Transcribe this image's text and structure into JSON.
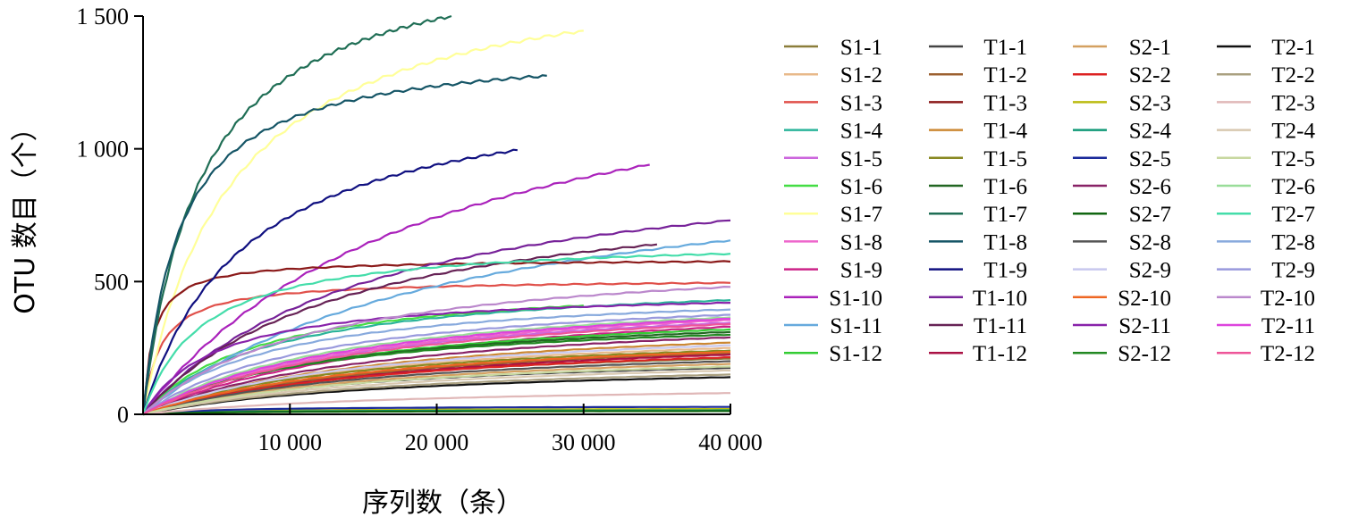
{
  "chart_data": {
    "type": "line",
    "xlabel": "序列数（条）",
    "ylabel": "OTU 数目（个）",
    "xlim": [
      0,
      40000
    ],
    "ylim": [
      0,
      1500
    ],
    "x_ticks": [
      10000,
      20000,
      30000,
      40000
    ],
    "x_tick_labels": [
      "10 000",
      "20 000",
      "30 000",
      "40 000"
    ],
    "y_ticks": [
      0,
      500,
      1000,
      1500
    ],
    "y_tick_labels": [
      "0",
      "500",
      "1 000",
      "1 500"
    ],
    "grid": false,
    "legend_position": "right",
    "series": [
      {
        "name": "S1-1",
        "color": "#8b7d3a",
        "end_x": 40000,
        "end_y": 210,
        "k": 14000
      },
      {
        "name": "S1-2",
        "color": "#e8b98a",
        "end_x": 40000,
        "end_y": 250,
        "k": 16000
      },
      {
        "name": "S1-3",
        "color": "#e0504a",
        "end_x": 40000,
        "end_y": 495,
        "k": 1200
      },
      {
        "name": "S1-4",
        "color": "#2ab49a",
        "end_x": 40000,
        "end_y": 430,
        "k": 9000
      },
      {
        "name": "S1-5",
        "color": "#cc66dd",
        "end_x": 40000,
        "end_y": 345,
        "k": 15000
      },
      {
        "name": "S1-6",
        "color": "#44dd44",
        "end_x": 30000,
        "end_y": 410,
        "k": 8000
      },
      {
        "name": "S1-7",
        "color": "#ffff99",
        "end_x": 30000,
        "end_y": 1445,
        "k": 6000
      },
      {
        "name": "S1-8",
        "color": "#ee66cc",
        "end_x": 40000,
        "end_y": 355,
        "k": 16000
      },
      {
        "name": "S1-9",
        "color": "#cc2288",
        "end_x": 40000,
        "end_y": 330,
        "k": 18000
      },
      {
        "name": "S1-10",
        "color": "#aa22bb",
        "end_x": 34500,
        "end_y": 940,
        "k": 20000
      },
      {
        "name": "S1-11",
        "color": "#66aadd",
        "end_x": 40000,
        "end_y": 655,
        "k": 22000
      },
      {
        "name": "S1-12",
        "color": "#33cc33",
        "end_x": 40000,
        "end_y": 320,
        "k": 14000
      },
      {
        "name": "T1-1",
        "color": "#444444",
        "end_x": 40000,
        "end_y": 175,
        "k": 16000
      },
      {
        "name": "T1-2",
        "color": "#9c6030",
        "end_x": 40000,
        "end_y": 230,
        "k": 18000
      },
      {
        "name": "T1-3",
        "color": "#8b1a1a",
        "end_x": 40000,
        "end_y": 575,
        "k": 700
      },
      {
        "name": "T1-4",
        "color": "#cc8833",
        "end_x": 40000,
        "end_y": 270,
        "k": 17000
      },
      {
        "name": "T1-5",
        "color": "#888822",
        "end_x": 40000,
        "end_y": 240,
        "k": 15000
      },
      {
        "name": "T1-6",
        "color": "#226622",
        "end_x": 40000,
        "end_y": 310,
        "k": 13000
      },
      {
        "name": "T1-7",
        "color": "#1f6e55",
        "end_x": 21000,
        "end_y": 1500,
        "k": 4000
      },
      {
        "name": "T1-8",
        "color": "#155566",
        "end_x": 27500,
        "end_y": 1275,
        "k": 2500
      },
      {
        "name": "T1-9",
        "color": "#101080",
        "end_x": 25500,
        "end_y": 995,
        "k": 7000
      },
      {
        "name": "T1-10",
        "color": "#772299",
        "end_x": 40000,
        "end_y": 730,
        "k": 16000
      },
      {
        "name": "T1-11",
        "color": "#662255",
        "end_x": 35000,
        "end_y": 640,
        "k": 14000
      },
      {
        "name": "T1-12",
        "color": "#aa1144",
        "end_x": 40000,
        "end_y": 225,
        "k": 20000
      },
      {
        "name": "S2-1",
        "color": "#d4a060",
        "end_x": 40000,
        "end_y": 190,
        "k": 18000
      },
      {
        "name": "S2-2",
        "color": "#dd2222",
        "end_x": 40000,
        "end_y": 215,
        "k": 18000
      },
      {
        "name": "S2-3",
        "color": "#bbbb11",
        "end_x": 40000,
        "end_y": 20,
        "k": 5000
      },
      {
        "name": "S2-4",
        "color": "#119977",
        "end_x": 40000,
        "end_y": 15,
        "k": 5000
      },
      {
        "name": "S2-5",
        "color": "#1a2a9a",
        "end_x": 40000,
        "end_y": 28,
        "k": 5000
      },
      {
        "name": "S2-6",
        "color": "#882266",
        "end_x": 40000,
        "end_y": 290,
        "k": 17000
      },
      {
        "name": "S2-7",
        "color": "#116611",
        "end_x": 40000,
        "end_y": 12,
        "k": 5000
      },
      {
        "name": "S2-8",
        "color": "#555555",
        "end_x": 40000,
        "end_y": 200,
        "k": 17000
      },
      {
        "name": "S2-9",
        "color": "#c8c8ee",
        "end_x": 40000,
        "end_y": 260,
        "k": 16000
      },
      {
        "name": "S2-10",
        "color": "#ee6622",
        "end_x": 40000,
        "end_y": 235,
        "k": 17000
      },
      {
        "name": "S2-11",
        "color": "#8822aa",
        "end_x": 40000,
        "end_y": 420,
        "k": 5000
      },
      {
        "name": "S2-12",
        "color": "#228822",
        "end_x": 40000,
        "end_y": 300,
        "k": 12000
      },
      {
        "name": "T2-1",
        "color": "#111111",
        "end_x": 40000,
        "end_y": 140,
        "k": 18000
      },
      {
        "name": "T2-2",
        "color": "#aaa080",
        "end_x": 40000,
        "end_y": 150,
        "k": 18000
      },
      {
        "name": "T2-3",
        "color": "#e0b8b8",
        "end_x": 40000,
        "end_y": 80,
        "k": 20000
      },
      {
        "name": "T2-4",
        "color": "#d8c8b0",
        "end_x": 40000,
        "end_y": 165,
        "k": 18000
      },
      {
        "name": "T2-5",
        "color": "#c8d8a0",
        "end_x": 40000,
        "end_y": 180,
        "k": 18000
      },
      {
        "name": "T2-6",
        "color": "#99dd99",
        "end_x": 40000,
        "end_y": 365,
        "k": 14000
      },
      {
        "name": "T2-7",
        "color": "#44ddaa",
        "end_x": 40000,
        "end_y": 605,
        "k": 4000
      },
      {
        "name": "T2-8",
        "color": "#88aadd",
        "end_x": 40000,
        "end_y": 395,
        "k": 9000
      },
      {
        "name": "T2-9",
        "color": "#9999dd",
        "end_x": 40000,
        "end_y": 375,
        "k": 12000
      },
      {
        "name": "T2-10",
        "color": "#bb88cc",
        "end_x": 40000,
        "end_y": 480,
        "k": 12000
      },
      {
        "name": "T2-11",
        "color": "#dd44dd",
        "end_x": 40000,
        "end_y": 360,
        "k": 15000
      },
      {
        "name": "T2-12",
        "color": "#ee5599",
        "end_x": 40000,
        "end_y": 340,
        "k": 16000
      }
    ]
  }
}
